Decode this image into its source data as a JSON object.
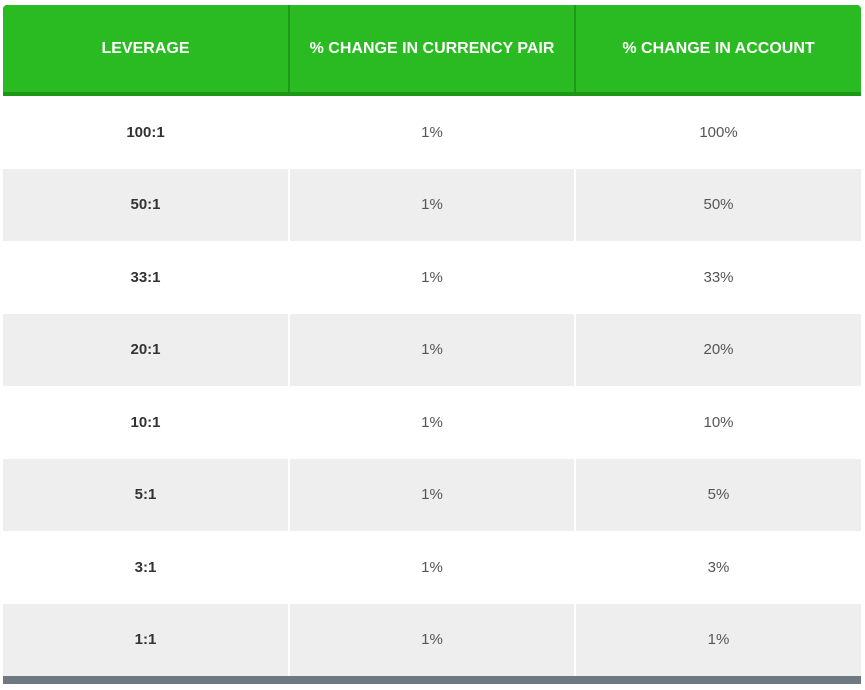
{
  "table": {
    "headers": [
      "LEVERAGE",
      "% CHANGE IN CURRENCY PAIR",
      "% CHANGE IN ACCOUNT"
    ],
    "rows": [
      [
        "100:1",
        "1%",
        "100%"
      ],
      [
        "50:1",
        "1%",
        "50%"
      ],
      [
        "33:1",
        "1%",
        "33%"
      ],
      [
        "20:1",
        "1%",
        "20%"
      ],
      [
        "10:1",
        "1%",
        "10%"
      ],
      [
        "5:1",
        "1%",
        "5%"
      ],
      [
        "3:1",
        "1%",
        "3%"
      ],
      [
        "1:1",
        "1%",
        "1%"
      ]
    ]
  }
}
